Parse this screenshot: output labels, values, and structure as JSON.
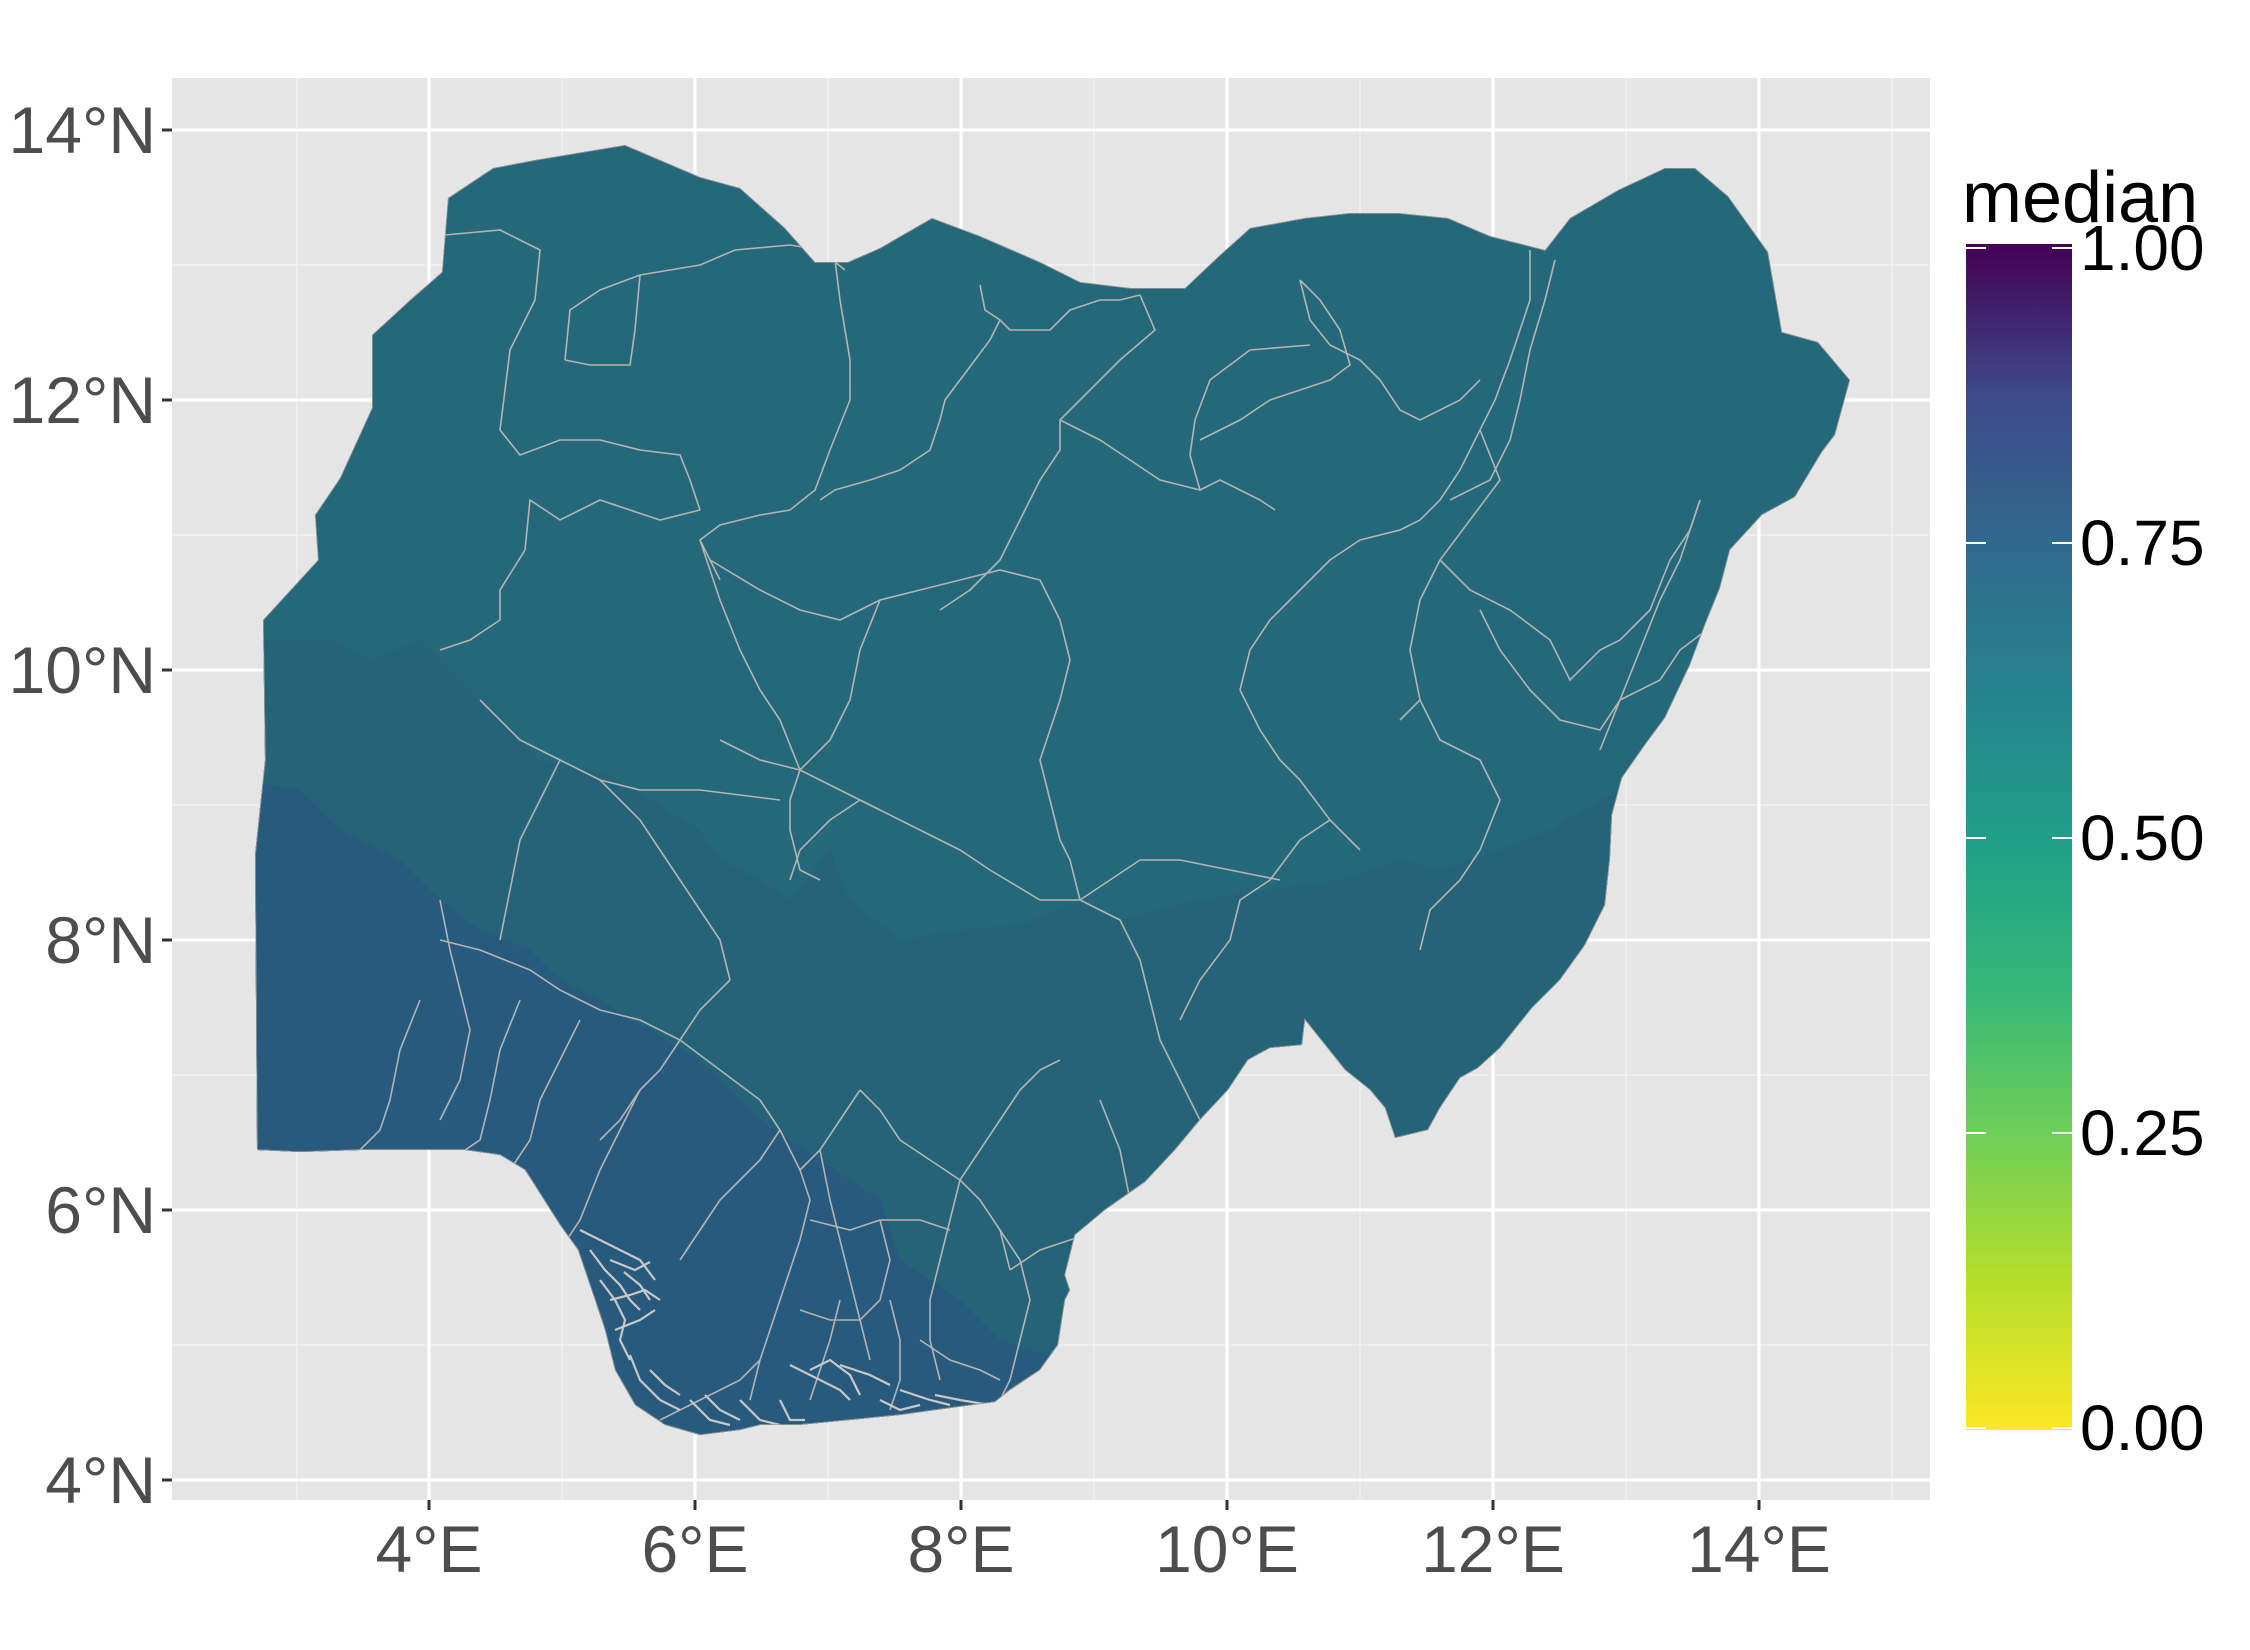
{
  "map": {
    "legend": {
      "title": "median",
      "ticks": [
        "1.00",
        "0.75",
        "0.50",
        "0.25",
        "0.00"
      ],
      "colors": [
        "#440154",
        "#3b528b",
        "#21908c",
        "#5ec962",
        "#fde725"
      ]
    },
    "x_axis": {
      "ticks": [
        "4°E",
        "6°E",
        "8°E",
        "10°E",
        "12°E",
        "14°E"
      ]
    },
    "y_axis": {
      "ticks": [
        "14°N",
        "12°N",
        "10°N",
        "8°N",
        "6°N",
        "4°N"
      ]
    },
    "colors": {
      "panel": "#e5e5e5",
      "grid": "#ffffff",
      "region_north": "#24687a",
      "region_central": "#246378",
      "region_south": "#285a7d",
      "boundary": "#b4b4b4"
    }
  }
}
